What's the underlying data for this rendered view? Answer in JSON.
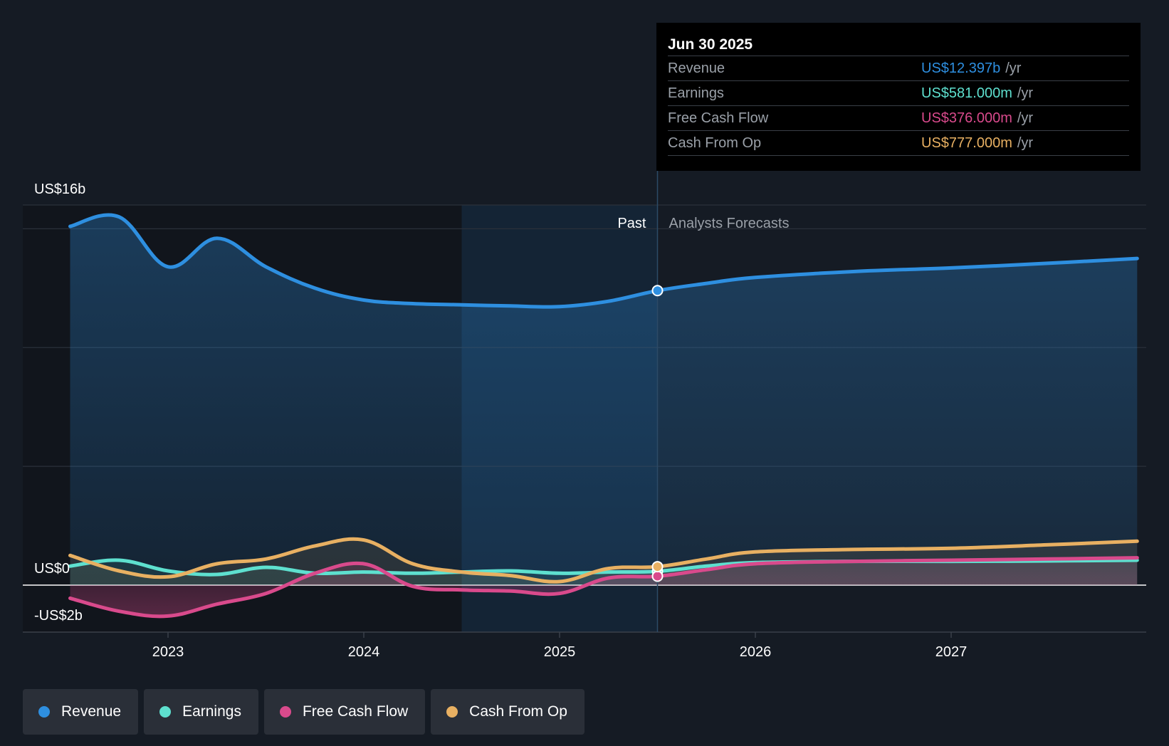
{
  "colors": {
    "background": "#151b24",
    "revenue": "#2e8fe0",
    "earnings": "#5ee0cf",
    "free_cash_flow": "#d94a8c",
    "cash_from_op": "#e8b062",
    "text": "#ffffff",
    "muted": "#9aa0a8"
  },
  "chart_data": {
    "type": "line",
    "x_unit": "year",
    "xlim": [
      2022.25,
      2027.95
    ],
    "ylim": [
      -2,
      16
    ],
    "y_tick_labels": [
      {
        "value": 16,
        "label": "US$16b"
      },
      {
        "value": 0,
        "label": "US$0"
      },
      {
        "value": -2,
        "label": "-US$2b"
      }
    ],
    "x_tick_labels": [
      "2023",
      "2024",
      "2025",
      "2026",
      "2027"
    ],
    "x_tick_values": [
      2023,
      2024,
      2025,
      2026,
      2027
    ],
    "past_label": "Past",
    "forecast_label": "Analysts Forecasts",
    "divider_x": 2025.5,
    "highlight_start_x": 2024.5,
    "series": [
      {
        "name": "Revenue",
        "color_key": "revenue",
        "x": [
          2022.5,
          2022.75,
          2023.0,
          2023.25,
          2023.5,
          2023.75,
          2024.0,
          2024.25,
          2024.5,
          2024.75,
          2025.0,
          2025.25,
          2025.5,
          2025.75,
          2026.0,
          2026.5,
          2027.0,
          2027.5,
          2027.95
        ],
        "values": [
          15.1,
          15.5,
          13.4,
          14.6,
          13.4,
          12.5,
          12.0,
          11.85,
          11.8,
          11.75,
          11.72,
          11.95,
          12.397,
          12.7,
          12.95,
          13.2,
          13.35,
          13.55,
          13.75
        ]
      },
      {
        "name": "Earnings",
        "color_key": "earnings",
        "x": [
          2022.5,
          2022.75,
          2023.0,
          2023.25,
          2023.5,
          2023.75,
          2024.0,
          2024.25,
          2024.5,
          2024.75,
          2025.0,
          2025.25,
          2025.5,
          2025.75,
          2026.0,
          2026.5,
          2027.0,
          2027.5,
          2027.95
        ],
        "values": [
          0.8,
          1.05,
          0.6,
          0.45,
          0.75,
          0.5,
          0.55,
          0.5,
          0.55,
          0.6,
          0.5,
          0.55,
          0.581,
          0.8,
          0.95,
          1.0,
          1.0,
          1.02,
          1.05
        ]
      },
      {
        "name": "Free Cash Flow",
        "color_key": "free_cash_flow",
        "x": [
          2022.5,
          2022.75,
          2023.0,
          2023.25,
          2023.5,
          2023.75,
          2024.0,
          2024.25,
          2024.5,
          2024.75,
          2025.0,
          2025.25,
          2025.5,
          2025.75,
          2026.0,
          2026.5,
          2027.0,
          2027.5,
          2027.95
        ],
        "values": [
          -0.55,
          -1.1,
          -1.3,
          -0.8,
          -0.35,
          0.5,
          0.9,
          -0.05,
          -0.2,
          -0.25,
          -0.35,
          0.3,
          0.376,
          0.65,
          0.9,
          1.0,
          1.05,
          1.1,
          1.15
        ]
      },
      {
        "name": "Cash From Op",
        "color_key": "cash_from_op",
        "x": [
          2022.5,
          2022.75,
          2023.0,
          2023.25,
          2023.5,
          2023.75,
          2024.0,
          2024.25,
          2024.5,
          2024.75,
          2025.0,
          2025.25,
          2025.5,
          2025.75,
          2026.0,
          2026.5,
          2027.0,
          2027.5,
          2027.95
        ],
        "values": [
          1.25,
          0.6,
          0.35,
          0.9,
          1.1,
          1.65,
          1.9,
          0.9,
          0.55,
          0.4,
          0.15,
          0.7,
          0.777,
          1.1,
          1.4,
          1.5,
          1.55,
          1.7,
          1.85
        ]
      }
    ]
  },
  "tooltip": {
    "date": "Jun 30 2025",
    "rows": [
      {
        "label": "Revenue",
        "value": "US$12.397b",
        "unit": "/yr",
        "color": "#2e8fe0"
      },
      {
        "label": "Earnings",
        "value": "US$581.000m",
        "unit": "/yr",
        "color": "#5ee0cf"
      },
      {
        "label": "Free Cash Flow",
        "value": "US$376.000m",
        "unit": "/yr",
        "color": "#d94a8c"
      },
      {
        "label": "Cash From Op",
        "value": "US$777.000m",
        "unit": "/yr",
        "color": "#e8b062"
      }
    ]
  },
  "legend": [
    {
      "label": "Revenue",
      "color": "#2e8fe0"
    },
    {
      "label": "Earnings",
      "color": "#5ee0cf"
    },
    {
      "label": "Free Cash Flow",
      "color": "#d94a8c"
    },
    {
      "label": "Cash From Op",
      "color": "#e8b062"
    }
  ]
}
